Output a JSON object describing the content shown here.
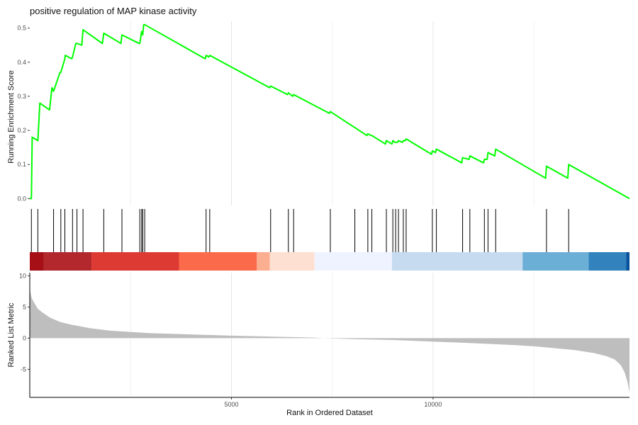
{
  "chart_data": {
    "type": "line",
    "title": "positive regulation of MAP kinase activity",
    "xlabel": "Rank in Ordered Dataset",
    "x_range": [
      0,
      14870
    ],
    "x_ticks": [
      5000,
      10000
    ],
    "top_panel": {
      "ylabel": "Running Enrichment Score",
      "ylim": [
        -0.02,
        0.52
      ],
      "y_ticks": [
        0.0,
        0.1,
        0.2,
        0.3,
        0.4,
        0.5
      ],
      "line_color": "#00ff00",
      "series": [
        {
          "x": [
            0,
            40,
            60,
            200,
            250,
            490,
            550,
            590,
            750,
            770,
            870,
            880,
            1040,
            1060,
            1140,
            1170,
            1290,
            1320,
            1800,
            1835,
            2260,
            2285,
            2710,
            2728,
            2775,
            2800,
            2825,
            2850,
            4350,
            4372,
            4440,
            4462,
            5950,
            5972,
            6390,
            6412,
            6520,
            6542,
            7430,
            7452,
            8360,
            8382,
            8460,
            8482,
            8820,
            8842,
            8980,
            9002,
            9050,
            9072,
            9120,
            9142,
            9240,
            9262,
            9310,
            9332,
            9960,
            9982,
            10060,
            10082,
            10710,
            10732,
            10890,
            10912,
            11250,
            11272,
            11340,
            11362,
            11530,
            11552,
            12790,
            12812,
            13340,
            13362,
            14870
          ],
          "y": [
            0.0,
            0.0,
            0.18,
            0.17,
            0.28,
            0.26,
            0.325,
            0.315,
            0.37,
            0.37,
            0.41,
            0.42,
            0.41,
            0.415,
            0.455,
            0.455,
            0.45,
            0.495,
            0.455,
            0.485,
            0.455,
            0.48,
            0.455,
            0.455,
            0.49,
            0.48,
            0.51,
            0.51,
            0.41,
            0.42,
            0.415,
            0.42,
            0.325,
            0.33,
            0.305,
            0.31,
            0.3,
            0.305,
            0.25,
            0.255,
            0.185,
            0.19,
            0.185,
            0.185,
            0.16,
            0.17,
            0.16,
            0.17,
            0.165,
            0.165,
            0.165,
            0.17,
            0.165,
            0.17,
            0.17,
            0.175,
            0.13,
            0.14,
            0.135,
            0.145,
            0.105,
            0.12,
            0.115,
            0.125,
            0.105,
            0.115,
            0.115,
            0.135,
            0.125,
            0.145,
            0.06,
            0.095,
            0.06,
            0.1,
            0.0
          ]
        }
      ]
    },
    "hit_ranks": [
      40,
      200,
      590,
      770,
      870,
      1060,
      1170,
      1320,
      1835,
      2285,
      2728,
      2775,
      2800,
      2850,
      4372,
      4462,
      5972,
      6412,
      6542,
      7452,
      8060,
      8382,
      8482,
      8842,
      9002,
      9072,
      9142,
      9262,
      9332,
      9982,
      10082,
      10732,
      10912,
      11272,
      11362,
      11552,
      12812,
      13362
    ],
    "color_bands": [
      {
        "start": 0,
        "end": 350,
        "color": "#a50f15"
      },
      {
        "start": 350,
        "end": 1530,
        "color": "#b2282c"
      },
      {
        "start": 1530,
        "end": 3700,
        "color": "#de3a34"
      },
      {
        "start": 3700,
        "end": 5630,
        "color": "#fb6a4a"
      },
      {
        "start": 5630,
        "end": 5950,
        "color": "#fcae91"
      },
      {
        "start": 5950,
        "end": 7060,
        "color": "#fee0d2"
      },
      {
        "start": 7060,
        "end": 8980,
        "color": "#eff3ff"
      },
      {
        "start": 8980,
        "end": 12220,
        "color": "#c6dbef"
      },
      {
        "start": 12220,
        "end": 13860,
        "color": "#6baed6"
      },
      {
        "start": 13860,
        "end": 14790,
        "color": "#3182bd"
      },
      {
        "start": 14790,
        "end": 14870,
        "color": "#08519c"
      }
    ],
    "bottom_panel": {
      "ylabel": "Ranked List Metric",
      "ylim": [
        -9.5,
        10.5
      ],
      "y_ticks": [
        -5,
        0,
        5,
        10
      ],
      "fill_color": "#bebebe",
      "curve": {
        "x": [
          0,
          20,
          50,
          100,
          200,
          300,
          500,
          750,
          1000,
          1500,
          2000,
          3000,
          4000,
          5000,
          6000,
          7000,
          7300,
          8000,
          9000,
          10000,
          11000,
          12000,
          12500,
          13000,
          13500,
          14000,
          14300,
          14500,
          14650,
          14750,
          14820,
          14870
        ],
        "y": [
          8.0,
          7.2,
          6.4,
          5.8,
          4.7,
          4.2,
          3.3,
          2.6,
          2.2,
          1.6,
          1.2,
          0.8,
          0.6,
          0.4,
          0.25,
          0.1,
          0.0,
          -0.15,
          -0.3,
          -0.55,
          -0.8,
          -1.1,
          -1.3,
          -1.6,
          -1.9,
          -2.4,
          -2.9,
          -3.4,
          -4.3,
          -5.5,
          -7.0,
          -8.7
        ]
      }
    }
  }
}
